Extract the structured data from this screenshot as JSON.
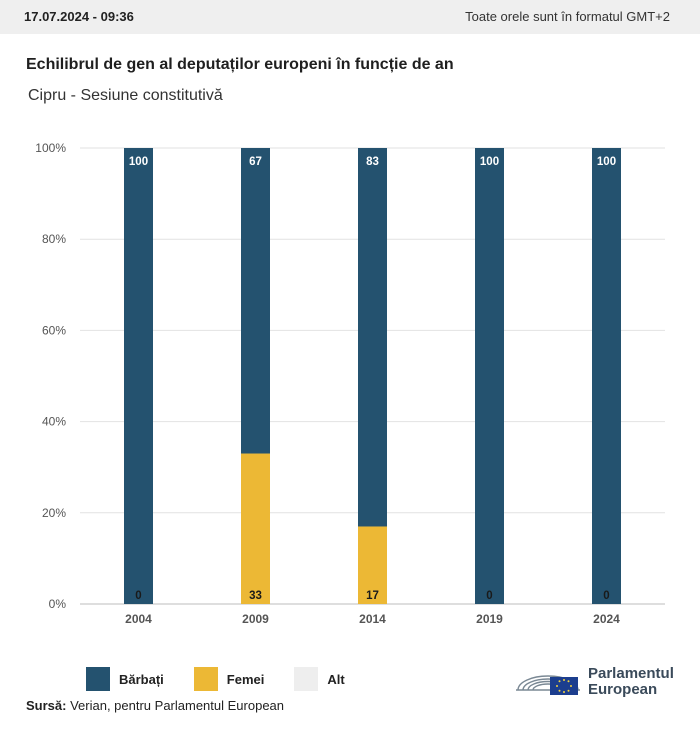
{
  "header": {
    "timestamp": "17.07.2024 - 09:36",
    "timezone_note": "Toate orele sunt în formatul GMT+2"
  },
  "title": "Echilibrul de gen al deputaților europeni în funcție de an",
  "subtitle": "Cipru - Sesiune constitutivă",
  "colors": {
    "barbati": "#24526f",
    "femei": "#ecb835",
    "alt": "#eeeeee",
    "grid": "#e2e2e2"
  },
  "legend": [
    {
      "label": "Bărbați",
      "color": "#24526f"
    },
    {
      "label": "Femei",
      "color": "#ecb835"
    },
    {
      "label": "Alt",
      "color": "#eeeeee"
    }
  ],
  "source": {
    "label": "Sursă:",
    "text": "Verian, pentru Parlamentul European"
  },
  "logo": {
    "line1": "Parlamentul",
    "line2": "European"
  },
  "chart_data": {
    "type": "bar",
    "stacked": true,
    "categories": [
      "2004",
      "2009",
      "2014",
      "2019",
      "2024"
    ],
    "series": [
      {
        "name": "Bărbați",
        "values": [
          100,
          67,
          83,
          100,
          100
        ]
      },
      {
        "name": "Femei",
        "values": [
          0,
          33,
          17,
          0,
          0
        ]
      },
      {
        "name": "Alt",
        "values": [
          0,
          0,
          0,
          0,
          0
        ]
      }
    ],
    "yticks": [
      "0%",
      "20%",
      "40%",
      "60%",
      "80%",
      "100%"
    ],
    "ylim": [
      0,
      100
    ],
    "grid": true,
    "legend_position": "bottom-left"
  }
}
